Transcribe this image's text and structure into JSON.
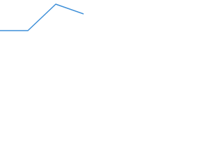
{
  "chart_data": {
    "type": "line",
    "x": [
      0,
      1,
      2,
      3
    ],
    "series": [
      {
        "color": "#3d8fd8",
        "values": [
          0,
          0,
          1,
          0.63
        ]
      }
    ],
    "xlim": [
      0,
      3
    ],
    "ylim": [
      0,
      1
    ]
  }
}
